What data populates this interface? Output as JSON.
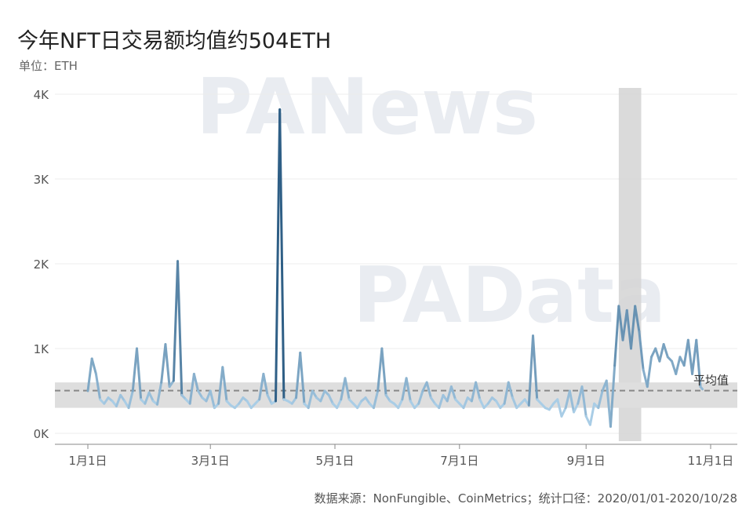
{
  "title": "今年NFT日交易额均值约504ETH",
  "unit_label": "单位：ETH",
  "source": "数据来源：NonFungible、CoinMetrics；统计口径：2020/01/01-2020/10/28",
  "watermarks": [
    "PANews",
    "PAData"
  ],
  "chart_data": {
    "type": "line",
    "title": "今年NFT日交易额均值约504ETH",
    "ylabel": "单位：ETH",
    "xlabel": "",
    "ylim": [
      0,
      4300
    ],
    "x_range": [
      "2020-01-01",
      "2020-10-28"
    ],
    "x_ticks": [
      {
        "date": "2020-01-01",
        "label": "1月1日"
      },
      {
        "date": "2020-03-01",
        "label": "3月1日"
      },
      {
        "date": "2020-05-01",
        "label": "5月1日"
      },
      {
        "date": "2020-07-01",
        "label": "7月1日"
      },
      {
        "date": "2020-09-01",
        "label": "9月1日"
      },
      {
        "date": "2020-11-01",
        "label": "11月1日"
      }
    ],
    "y_ticks": [
      {
        "value": 0,
        "label": "0K"
      },
      {
        "value": 1000,
        "label": "1K"
      },
      {
        "value": 2000,
        "label": "2K"
      },
      {
        "value": 3000,
        "label": "3K"
      },
      {
        "value": 4000,
        "label": "4K"
      }
    ],
    "grid": true,
    "average": {
      "value": 504,
      "label": "平均值",
      "band": [
        300,
        600
      ]
    },
    "highlight_range": [
      "2020-09-17",
      "2020-09-28"
    ],
    "line_color_low": "#a9cde6",
    "line_color_high": "#2f5f86",
    "series": [
      {
        "values": [
          [
            "2020-01-01",
            500
          ],
          [
            "2020-01-03",
            880
          ],
          [
            "2020-01-05",
            700
          ],
          [
            "2020-01-07",
            400
          ],
          [
            "2020-01-09",
            350
          ],
          [
            "2020-01-11",
            420
          ],
          [
            "2020-01-13",
            380
          ],
          [
            "2020-01-15",
            320
          ],
          [
            "2020-01-17",
            450
          ],
          [
            "2020-01-19",
            380
          ],
          [
            "2020-01-21",
            300
          ],
          [
            "2020-01-23",
            500
          ],
          [
            "2020-01-25",
            1000
          ],
          [
            "2020-01-27",
            400
          ],
          [
            "2020-01-29",
            350
          ],
          [
            "2020-01-31",
            480
          ],
          [
            "2020-02-02",
            380
          ],
          [
            "2020-02-04",
            340
          ],
          [
            "2020-02-06",
            600
          ],
          [
            "2020-02-08",
            1050
          ],
          [
            "2020-02-10",
            550
          ],
          [
            "2020-02-12",
            620
          ],
          [
            "2020-02-14",
            2030
          ],
          [
            "2020-02-16",
            450
          ],
          [
            "2020-02-18",
            400
          ],
          [
            "2020-02-20",
            350
          ],
          [
            "2020-02-22",
            700
          ],
          [
            "2020-02-24",
            500
          ],
          [
            "2020-02-26",
            420
          ],
          [
            "2020-02-28",
            380
          ],
          [
            "2020-03-01",
            500
          ],
          [
            "2020-03-03",
            300
          ],
          [
            "2020-03-05",
            350
          ],
          [
            "2020-03-07",
            780
          ],
          [
            "2020-03-09",
            380
          ],
          [
            "2020-03-11",
            330
          ],
          [
            "2020-03-13",
            300
          ],
          [
            "2020-03-15",
            350
          ],
          [
            "2020-03-17",
            420
          ],
          [
            "2020-03-19",
            380
          ],
          [
            "2020-03-21",
            300
          ],
          [
            "2020-03-23",
            350
          ],
          [
            "2020-03-25",
            400
          ],
          [
            "2020-03-27",
            700
          ],
          [
            "2020-03-29",
            450
          ],
          [
            "2020-03-31",
            350
          ],
          [
            "2020-04-02",
            380
          ],
          [
            "2020-04-04",
            3820
          ],
          [
            "2020-04-06",
            400
          ],
          [
            "2020-04-08",
            380
          ],
          [
            "2020-04-10",
            350
          ],
          [
            "2020-04-12",
            420
          ],
          [
            "2020-04-14",
            950
          ],
          [
            "2020-04-16",
            350
          ],
          [
            "2020-04-18",
            300
          ],
          [
            "2020-04-20",
            500
          ],
          [
            "2020-04-22",
            420
          ],
          [
            "2020-04-24",
            380
          ],
          [
            "2020-04-26",
            500
          ],
          [
            "2020-04-28",
            450
          ],
          [
            "2020-04-30",
            350
          ],
          [
            "2020-05-02",
            300
          ],
          [
            "2020-05-04",
            400
          ],
          [
            "2020-05-06",
            650
          ],
          [
            "2020-05-08",
            400
          ],
          [
            "2020-05-10",
            350
          ],
          [
            "2020-05-12",
            300
          ],
          [
            "2020-05-14",
            380
          ],
          [
            "2020-05-16",
            420
          ],
          [
            "2020-05-18",
            350
          ],
          [
            "2020-05-20",
            300
          ],
          [
            "2020-05-22",
            500
          ],
          [
            "2020-05-24",
            1000
          ],
          [
            "2020-05-26",
            450
          ],
          [
            "2020-05-28",
            380
          ],
          [
            "2020-05-30",
            350
          ],
          [
            "2020-06-01",
            300
          ],
          [
            "2020-06-03",
            400
          ],
          [
            "2020-06-05",
            650
          ],
          [
            "2020-06-07",
            380
          ],
          [
            "2020-06-09",
            300
          ],
          [
            "2020-06-11",
            350
          ],
          [
            "2020-06-13",
            500
          ],
          [
            "2020-06-15",
            600
          ],
          [
            "2020-06-17",
            420
          ],
          [
            "2020-06-19",
            350
          ],
          [
            "2020-06-21",
            300
          ],
          [
            "2020-06-23",
            450
          ],
          [
            "2020-06-25",
            380
          ],
          [
            "2020-06-27",
            550
          ],
          [
            "2020-06-29",
            400
          ],
          [
            "2020-07-01",
            350
          ],
          [
            "2020-07-03",
            300
          ],
          [
            "2020-07-05",
            420
          ],
          [
            "2020-07-07",
            380
          ],
          [
            "2020-07-09",
            600
          ],
          [
            "2020-07-11",
            400
          ],
          [
            "2020-07-13",
            300
          ],
          [
            "2020-07-15",
            350
          ],
          [
            "2020-07-17",
            420
          ],
          [
            "2020-07-19",
            380
          ],
          [
            "2020-07-21",
            300
          ],
          [
            "2020-07-23",
            350
          ],
          [
            "2020-07-25",
            600
          ],
          [
            "2020-07-27",
            420
          ],
          [
            "2020-07-29",
            300
          ],
          [
            "2020-07-31",
            350
          ],
          [
            "2020-08-02",
            400
          ],
          [
            "2020-08-04",
            330
          ],
          [
            "2020-08-06",
            1150
          ],
          [
            "2020-08-08",
            400
          ],
          [
            "2020-08-10",
            350
          ],
          [
            "2020-08-12",
            300
          ],
          [
            "2020-08-14",
            280
          ],
          [
            "2020-08-16",
            350
          ],
          [
            "2020-08-18",
            400
          ],
          [
            "2020-08-20",
            200
          ],
          [
            "2020-08-22",
            300
          ],
          [
            "2020-08-24",
            500
          ],
          [
            "2020-08-26",
            250
          ],
          [
            "2020-08-28",
            350
          ],
          [
            "2020-08-30",
            550
          ],
          [
            "2020-09-01",
            200
          ],
          [
            "2020-09-03",
            100
          ],
          [
            "2020-09-05",
            350
          ],
          [
            "2020-09-07",
            300
          ],
          [
            "2020-09-09",
            500
          ],
          [
            "2020-09-11",
            620
          ],
          [
            "2020-09-13",
            80
          ],
          [
            "2020-09-15",
            800
          ],
          [
            "2020-09-17",
            1500
          ],
          [
            "2020-09-19",
            1100
          ],
          [
            "2020-09-21",
            1450
          ],
          [
            "2020-09-23",
            1000
          ],
          [
            "2020-09-25",
            1500
          ],
          [
            "2020-09-27",
            1200
          ],
          [
            "2020-09-29",
            750
          ],
          [
            "2020-10-01",
            550
          ],
          [
            "2020-10-03",
            900
          ],
          [
            "2020-10-05",
            1000
          ],
          [
            "2020-10-07",
            850
          ],
          [
            "2020-10-09",
            1050
          ],
          [
            "2020-10-11",
            900
          ],
          [
            "2020-10-13",
            850
          ],
          [
            "2020-10-15",
            700
          ],
          [
            "2020-10-17",
            900
          ],
          [
            "2020-10-19",
            800
          ],
          [
            "2020-10-21",
            1100
          ],
          [
            "2020-10-23",
            700
          ],
          [
            "2020-10-25",
            1100
          ],
          [
            "2020-10-27",
            550
          ],
          [
            "2020-10-28",
            520
          ]
        ]
      }
    ]
  }
}
